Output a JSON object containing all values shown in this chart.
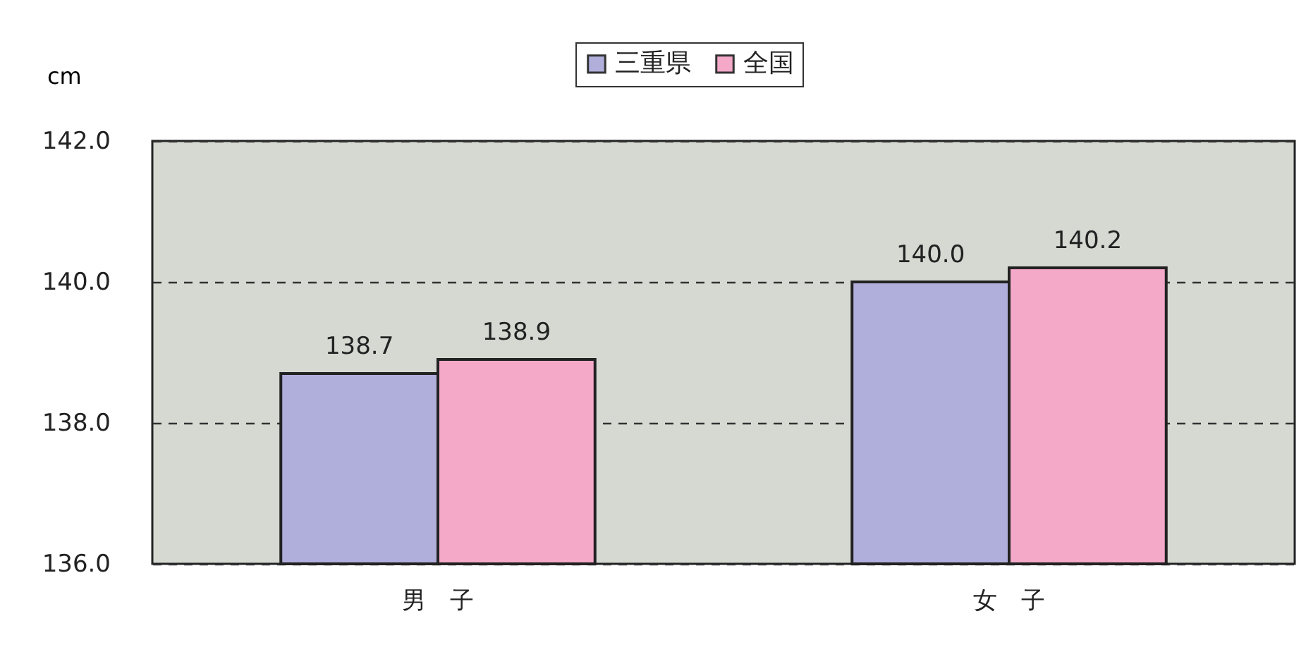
{
  "chart_data": {
    "type": "bar",
    "ylabel": "cm",
    "categories": [
      "男　子",
      "女　子"
    ],
    "series": [
      {
        "name": "三重県",
        "color": "#b0afdc",
        "values": [
          138.7,
          140.0
        ],
        "value_labels": [
          "138.7",
          "140.0"
        ]
      },
      {
        "name": "全国",
        "color": "#f5a9c8",
        "values": [
          138.9,
          140.2
        ],
        "value_labels": [
          "138.9",
          "140.2"
        ]
      }
    ],
    "ylim": [
      136,
      142
    ],
    "yticks": [
      {
        "value": 136,
        "label": "136.0"
      },
      {
        "value": 138,
        "label": "138.0"
      },
      {
        "value": 140,
        "label": "140.0"
      },
      {
        "value": 142,
        "label": "142.0"
      }
    ],
    "grid": "y",
    "legend": "top"
  }
}
